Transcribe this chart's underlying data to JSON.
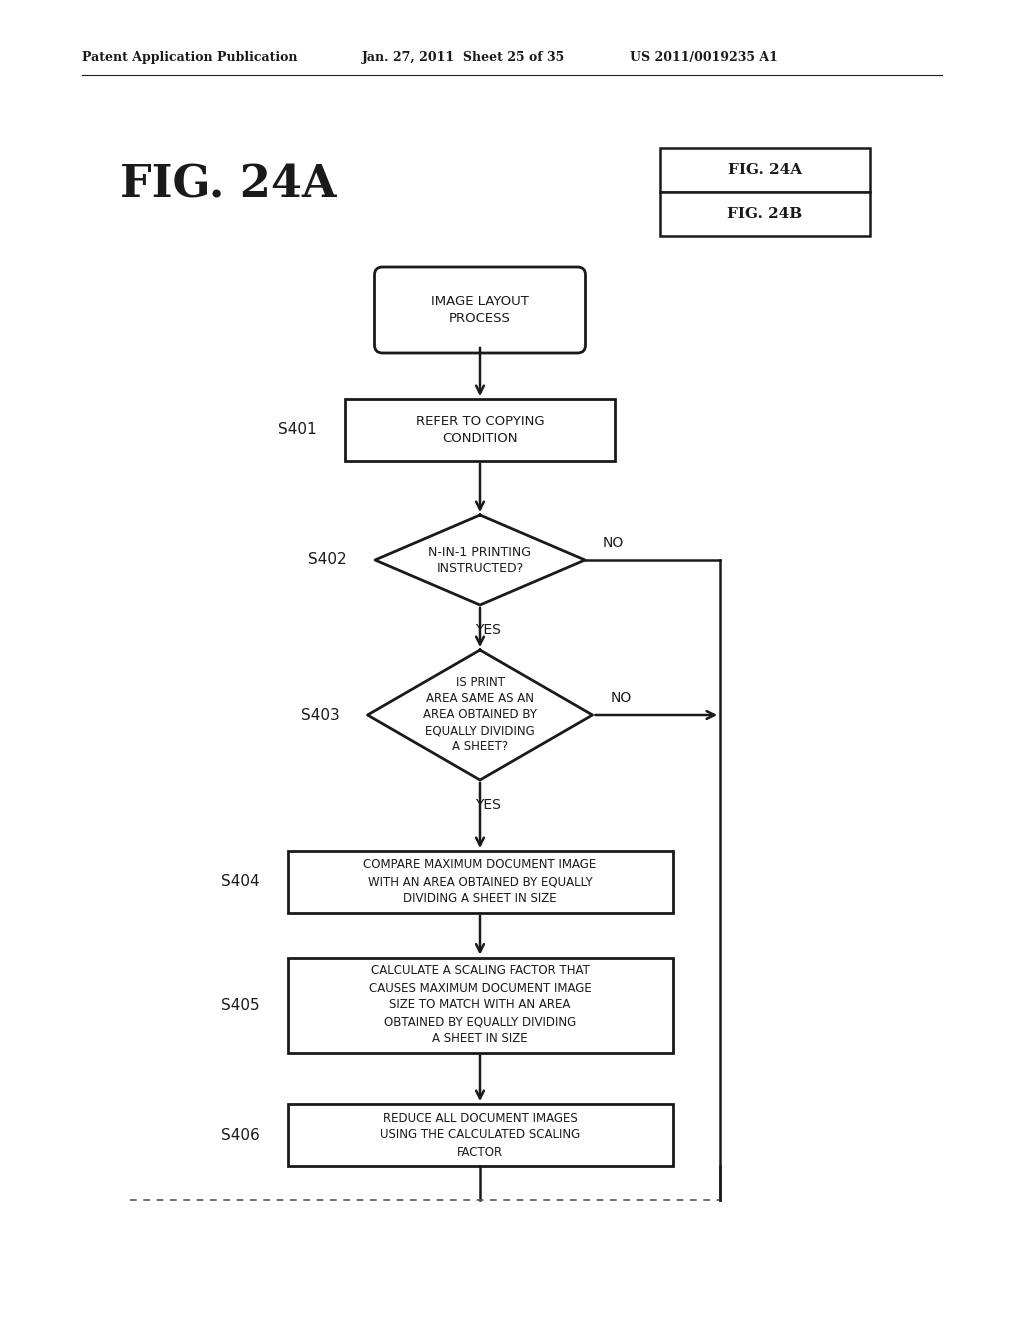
{
  "bg_color": "#ffffff",
  "header_left": "Patent Application Publication",
  "header_mid": "Jan. 27, 2011  Sheet 25 of 35",
  "header_right": "US 2011/0019235 A1",
  "fig_title": "FIG. 24A",
  "fig_box_lines": [
    "FIG. 24A",
    "FIG. 24B"
  ],
  "start_text": "IMAGE LAYOUT\nPROCESS",
  "s401_text": "REFER TO COPYING\nCONDITION",
  "s402_text": "N-IN-1 PRINTING\nINSTRUCTED?",
  "s403_text": "IS PRINT\nAREA SAME AS AN\nAREA OBTAINED BY\nEQUALLY DIVIDING\nA SHEET?",
  "s404_text": "COMPARE MAXIMUM DOCUMENT IMAGE\nWITH AN AREA OBTAINED BY EQUALLY\nDIVIDING A SHEET IN SIZE",
  "s405_text": "CALCULATE A SCALING FACTOR THAT\nCAUSES MAXIMUM DOCUMENT IMAGE\nSIZE TO MATCH WITH AN AREA\nOBTAINED BY EQUALLY DIVIDING\nA SHEET IN SIZE",
  "s406_text": "REDUCE ALL DOCUMENT IMAGES\nUSING THE CALCULATED SCALING\nFACTOR"
}
